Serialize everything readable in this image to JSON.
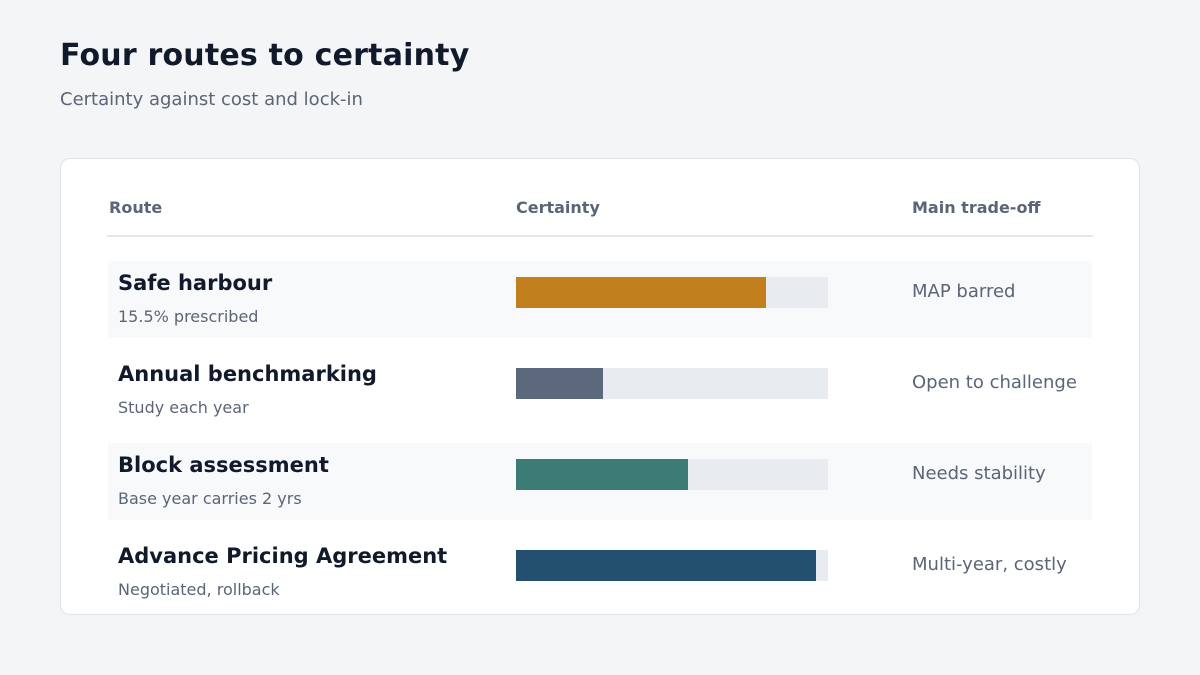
{
  "title": "Four routes to certainty",
  "subtitle": "Certainty against cost and lock-in",
  "table": {
    "headers": {
      "route": "Route",
      "certainty": "Certainty",
      "tradeoff": "Main trade-off"
    }
  },
  "chart_data": {
    "type": "bar",
    "orientation": "horizontal",
    "value_label": "Certainty",
    "xlim": [
      0,
      1
    ],
    "categories": [
      "Safe harbour",
      "Annual benchmarking",
      "Block assessment",
      "Advance Pricing Agreement"
    ],
    "values": [
      0.8,
      0.28,
      0.55,
      0.96
    ],
    "rows": [
      {
        "route": "Safe harbour",
        "note": "15.5% prescribed",
        "certainty": 0.8,
        "tradeoff": "MAP barred",
        "color": "#c17f1e"
      },
      {
        "route": "Annual benchmarking",
        "note": "Study each year",
        "certainty": 0.28,
        "tradeoff": "Open to challenge",
        "color": "#5c687b"
      },
      {
        "route": "Block assessment",
        "note": "Base year carries 2 yrs",
        "certainty": 0.55,
        "tradeoff": "Needs stability",
        "color": "#3d7b76"
      },
      {
        "route": "Advance Pricing Agreement",
        "note": "Negotiated, rollback",
        "certainty": 0.96,
        "tradeoff": "Multi-year, costly",
        "color": "#22506e"
      }
    ]
  }
}
